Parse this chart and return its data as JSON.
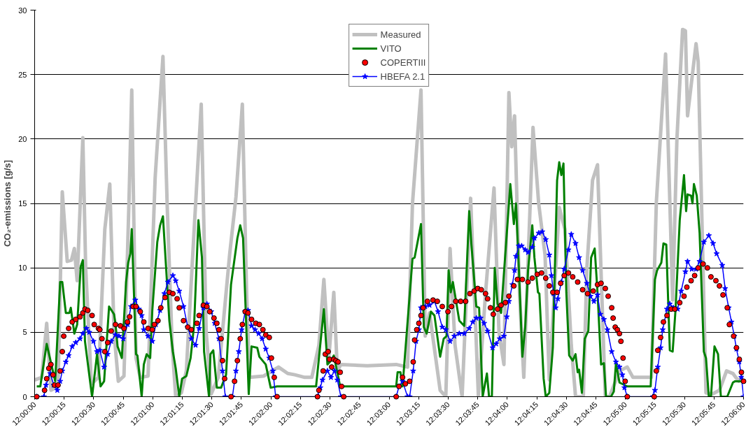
{
  "chart_data": {
    "type": "line",
    "ylabel": "CO₂-emissions [g/s]",
    "xlim": [
      12,
      12.1
    ],
    "ylim": [
      0,
      30
    ],
    "xticks": [
      {
        "value": 12,
        "label": "12:00:00"
      },
      {
        "value": 12.004167,
        "label": "12:00:15"
      },
      {
        "value": 12.008333,
        "label": "12:00:30"
      },
      {
        "value": 12.0125,
        "label": "12:00:45"
      },
      {
        "value": 12.016667,
        "label": "12:01:00"
      },
      {
        "value": 12.020833,
        "label": "12:01:15"
      },
      {
        "value": 12.025,
        "label": "12:01:30"
      },
      {
        "value": 12.029167,
        "label": "12:01:45"
      },
      {
        "value": 12.033333,
        "label": "12:02:00"
      },
      {
        "value": 12.0375,
        "label": "12:02:15"
      },
      {
        "value": 12.041667,
        "label": "12:02:30"
      },
      {
        "value": 12.045833,
        "label": "12:02:45"
      },
      {
        "value": 12.05,
        "label": "12:03:00"
      },
      {
        "value": 12.054167,
        "label": "12:03:15"
      },
      {
        "value": 12.058333,
        "label": "12:03:30"
      },
      {
        "value": 12.0625,
        "label": "12:03:45"
      },
      {
        "value": 12.066667,
        "label": "12:04:00"
      },
      {
        "value": 12.070833,
        "label": "12:04:15"
      },
      {
        "value": 12.075,
        "label": "12:04:30"
      },
      {
        "value": 12.079167,
        "label": "12:04:45"
      },
      {
        "value": 12.083333,
        "label": "12:05:00"
      },
      {
        "value": 12.0875,
        "label": "12:05:15"
      },
      {
        "value": 12.091667,
        "label": "12:05:30"
      },
      {
        "value": 12.095833,
        "label": "12:05:45"
      },
      {
        "value": 12.1,
        "label": "12:06:00"
      }
    ],
    "yticks": [
      0,
      5,
      10,
      15,
      20,
      25,
      30
    ],
    "grid": "y",
    "legend": "top",
    "series": [
      {
        "name": "Measured",
        "color": "#c0c0c0",
        "marker": "none",
        "x": [
          12.0,
          12.001,
          12.0017,
          12.0023,
          12.0033,
          12.0039,
          12.0046,
          12.0052,
          12.0056,
          12.006,
          12.0068,
          12.0072,
          12.008,
          12.009,
          12.0099,
          12.0106,
          12.0112,
          12.0118,
          12.0126,
          12.0133,
          12.0137,
          12.0143,
          12.0149,
          12.016,
          12.017,
          12.0181,
          12.0187,
          12.0194,
          12.0199,
          12.0207,
          12.0214,
          12.0222,
          12.0235,
          12.0242,
          12.0249,
          12.0259,
          12.0275,
          12.0284,
          12.0293,
          12.0299,
          12.0303,
          12.0323,
          12.0344,
          12.0357,
          12.0367,
          12.0381,
          12.0391,
          12.0401,
          12.0408,
          12.0415,
          12.0422,
          12.0427,
          12.0432,
          12.0469,
          12.051,
          12.0526,
          12.0533,
          12.0545,
          12.0551,
          12.0557,
          12.0572,
          12.058,
          12.0586,
          12.0593,
          12.0603,
          12.0615,
          12.0626,
          12.0636,
          12.0648,
          12.0655,
          12.0662,
          12.0669,
          12.0673,
          12.0677,
          12.0684,
          12.069,
          12.0703,
          12.0711,
          12.072,
          12.0726,
          12.074,
          12.0748,
          12.0757,
          12.0763,
          12.0774,
          12.0779,
          12.0787,
          12.0794,
          12.08,
          12.0805,
          12.0811,
          12.0825,
          12.0836,
          12.0844,
          12.087,
          12.0877,
          12.089,
          12.09,
          12.0906,
          12.0914,
          12.0918,
          12.0921,
          12.0933,
          12.0936,
          12.0942,
          12.0947,
          12.0956,
          12.0966,
          12.0976,
          12.0985,
          12.0993,
          12.1
        ],
        "values": [
          1.3,
          1.5,
          5.7,
          0.5,
          0.8,
          15.9,
          10.5,
          10.6,
          11.5,
          9.0,
          20.1,
          10,
          1.0,
          1.5,
          13,
          16.5,
          5,
          1.2,
          1.6,
          15,
          23.8,
          3,
          1.5,
          1.6,
          17,
          26.4,
          14.8,
          4,
          0,
          0.3,
          2,
          10,
          22.7,
          5,
          0.2,
          1.5,
          11,
          15.5,
          22.7,
          8,
          1.5,
          1.6,
          2.3,
          1.8,
          1.7,
          1.5,
          1.5,
          4,
          9.1,
          3,
          8.1,
          2.0,
          2.5,
          2.4,
          2.5,
          2.3,
          15,
          23.8,
          4.7,
          6.5,
          0.5,
          0,
          11.5,
          4,
          0,
          15.4,
          0,
          8,
          16.2,
          5,
          2.5,
          23.6,
          19.4,
          21.8,
          8,
          1.5,
          20.9,
          15,
          11,
          1.3,
          14.7,
          13,
          4,
          0,
          0,
          10,
          16.8,
          18.0,
          8,
          0,
          0,
          2,
          2.3,
          1.5,
          1.5,
          15.1,
          26.6,
          7.5,
          20,
          28.5,
          28.4,
          21.8,
          27.4,
          26,
          12,
          0.3,
          0.2,
          0.5,
          2.0,
          1.8,
          1.2,
          1.8
        ]
      },
      {
        "name": "VITO",
        "color": "#008000",
        "marker": "none",
        "x": [
          12.0003,
          12.0008,
          12.0017,
          12.0029,
          12.0036,
          12.0039,
          12.0044,
          12.0049,
          12.0051,
          12.0056,
          12.006,
          12.0065,
          12.0068,
          12.0071,
          12.0081,
          12.0088,
          12.0093,
          12.0098,
          12.0105,
          12.0112,
          12.0114,
          12.0117,
          12.0123,
          12.0129,
          12.0132,
          12.0135,
          12.0137,
          12.0143,
          12.0145,
          12.0151,
          12.0154,
          12.0158,
          12.0163,
          12.0166,
          12.0173,
          12.0177,
          12.0181,
          12.019,
          12.0195,
          12.0199,
          12.0204,
          12.0208,
          12.0214,
          12.022,
          12.0225,
          12.0231,
          12.0236,
          12.0239,
          12.0246,
          12.0248,
          12.0252,
          12.0257,
          12.0263,
          12.027,
          12.0277,
          12.0286,
          12.029,
          12.0294,
          12.0302,
          12.0306,
          12.0314,
          12.0317,
          12.0326,
          12.0333,
          12.0342,
          12.0397,
          12.0408,
          12.0413,
          12.0418,
          12.0422,
          12.0431,
          12.051,
          12.0512,
          12.0516,
          12.0519,
          12.0533,
          12.0536,
          12.0545,
          12.0549,
          12.0553,
          12.0559,
          12.0564,
          12.0572,
          12.0577,
          12.0581,
          12.0584,
          12.0587,
          12.059,
          12.0599,
          12.0606,
          12.0613,
          12.0616,
          12.0623,
          12.0627,
          12.0632,
          12.0638,
          12.0641,
          12.0645,
          12.0649,
          12.0653,
          12.0658,
          12.0671,
          12.0676,
          12.0679,
          12.0683,
          12.0688,
          12.0692,
          12.0696,
          12.0702,
          12.0705,
          12.071,
          12.0712,
          12.0718,
          12.0721,
          12.0726,
          12.0731,
          12.0737,
          12.074,
          12.0743,
          12.0746,
          12.075,
          12.0754,
          12.0759,
          12.0763,
          12.0766,
          12.0768,
          12.0772,
          12.0776,
          12.0781,
          12.0785,
          12.079,
          12.0794,
          12.0799,
          12.0803,
          12.0806,
          12.0813,
          12.0817,
          12.082,
          12.0825,
          12.0836,
          12.0869,
          12.0875,
          12.0878,
          12.0884,
          12.0887,
          12.0891,
          12.0896,
          12.09,
          12.0904,
          12.091,
          12.0916,
          12.0919,
          12.0921,
          12.0926,
          12.0928,
          12.093,
          12.0934,
          12.0938,
          12.0944,
          12.0947,
          12.0951,
          12.0954,
          12.0959,
          12.0964,
          12.0968,
          12.0977,
          12.0985,
          12.0988,
          12.1
        ],
        "values": [
          0.8,
          0.8,
          4.1,
          1.2,
          8.9,
          8.9,
          6.5,
          6.5,
          6.9,
          4.9,
          5.6,
          10.1,
          10.6,
          4.3,
          0,
          3.3,
          0.8,
          1.2,
          7.0,
          6.4,
          5.7,
          3.9,
          3.0,
          8.9,
          10.4,
          11.1,
          13.0,
          3.3,
          3.2,
          0,
          2.5,
          3.3,
          3.0,
          6.7,
          12.0,
          13.3,
          14.0,
          5.9,
          3.5,
          2.2,
          0,
          1.4,
          1.6,
          3.0,
          5.6,
          13.7,
          10.8,
          3.5,
          0,
          3.3,
          3.6,
          0.7,
          0.7,
          1.7,
          8.7,
          12.3,
          13.3,
          12.3,
          0.2,
          3.9,
          3.8,
          3.1,
          2.5,
          0.7,
          0.8,
          0.8,
          6.8,
          2.5,
          2.8,
          3.2,
          0.8,
          0.8,
          1.9,
          1.9,
          0.8,
          10.7,
          10.8,
          13.4,
          5.4,
          4.9,
          6.6,
          6.3,
          3.1,
          4.5,
          4.7,
          9.8,
          8.1,
          8.9,
          5.9,
          5.5,
          14.4,
          11.9,
          7.0,
          6.9,
          0,
          1.8,
          0,
          0,
          10.0,
          7.2,
          6.5,
          16.5,
          13.4,
          15.0,
          10.0,
          3.1,
          5.4,
          9.8,
          13.3,
          10.8,
          8.1,
          8.0,
          1.4,
          0,
          0.3,
          3.8,
          16.8,
          18.2,
          17.2,
          18.1,
          8.1,
          3.2,
          2.8,
          3.3,
          1.9,
          2.1,
          0.3,
          4.5,
          5.1,
          10.8,
          11.5,
          8.1,
          2.5,
          2.6,
          0,
          0,
          0.4,
          2.6,
          1.1,
          0.8,
          0.8,
          9.1,
          9.8,
          10.4,
          11.9,
          11.8,
          3.6,
          3.5,
          6.7,
          13.7,
          17.2,
          14.4,
          15.7,
          15.6,
          15.0,
          16.5,
          15.6,
          12.7,
          3.5,
          3.0,
          0,
          0,
          3.9,
          3.3,
          0,
          0,
          1.1,
          1.2,
          1.2
        ]
      },
      {
        "name": "COPERTIII",
        "color": "#ff0000",
        "type": "scatter",
        "marker": "circle",
        "x": [
          12.0003,
          12.0014,
          12.0017,
          12.002,
          12.0023,
          12.0026,
          12.0028,
          12.0033,
          12.0036,
          12.0039,
          12.0041,
          12.0048,
          12.0053,
          12.0058,
          12.0064,
          12.0068,
          12.0071,
          12.0075,
          12.0081,
          12.0084,
          12.009,
          12.0092,
          12.0095,
          12.0099,
          12.0103,
          12.0108,
          12.0114,
          12.0121,
          12.0126,
          12.0131,
          12.0134,
          12.0139,
          12.0143,
          12.0149,
          12.0154,
          12.016,
          12.0166,
          12.0169,
          12.0174,
          12.0178,
          12.0184,
          12.019,
          12.0195,
          12.0201,
          12.0204,
          12.021,
          12.0216,
          12.0221,
          12.0229,
          12.0232,
          12.0238,
          12.0243,
          12.0247,
          12.0253,
          12.0257,
          12.026,
          12.0263,
          12.0265,
          12.0268,
          12.0277,
          12.0282,
          12.0286,
          12.029,
          12.0293,
          12.0297,
          12.0301,
          12.0306,
          12.0312,
          12.0317,
          12.0322,
          12.0326,
          12.0331,
          12.0334,
          12.0338,
          12.0342,
          12.0399,
          12.0401,
          12.0407,
          12.041,
          12.0414,
          12.0416,
          12.0419,
          12.0422,
          12.0425,
          12.0428,
          12.0431,
          12.0433,
          12.0436,
          12.051,
          12.0514,
          12.0519,
          12.0523,
          12.0529,
          12.0534,
          12.0536,
          12.0539,
          12.0542,
          12.0545,
          12.0548,
          12.0554,
          12.0562,
          12.0568,
          12.0575,
          12.0583,
          12.0588,
          12.0594,
          12.0601,
          12.0608,
          12.0614,
          12.062,
          12.0625,
          12.063,
          12.0636,
          12.0639,
          12.0643,
          12.0647,
          12.0653,
          12.0658,
          12.0664,
          12.0669,
          12.0676,
          12.0681,
          12.0688,
          12.0696,
          12.0702,
          12.0709,
          12.0715,
          12.0721,
          12.0726,
          12.0731,
          12.0737,
          12.0742,
          12.0747,
          12.0753,
          12.0759,
          12.0766,
          12.0773,
          12.078,
          12.0788,
          12.0794,
          12.0799,
          12.0805,
          12.0809,
          12.0814,
          12.0816,
          12.0819,
          12.0822,
          12.0825,
          12.0827,
          12.083,
          12.0833,
          12.0836,
          12.0874,
          12.0877,
          12.0879,
          12.0883,
          12.0887,
          12.0892,
          12.0898,
          12.0903,
          12.091,
          12.0916,
          12.092,
          12.0926,
          12.0931,
          12.0936,
          12.0943,
          12.0949,
          12.0954,
          12.0961,
          12.0966,
          12.0971,
          12.0977,
          12.098,
          12.0986,
          12.099,
          12.0994,
          12.0997,
          12.1
        ],
        "values": [
          0,
          0.5,
          1.4,
          2.2,
          2.5,
          1.7,
          0.9,
          0.9,
          2.0,
          3.5,
          4.7,
          5.3,
          5.8,
          6.0,
          6.2,
          6.5,
          6.8,
          6.7,
          6.3,
          5.6,
          5.3,
          5.2,
          4.5,
          3.5,
          4.2,
          5.1,
          5.6,
          5.5,
          5.3,
          5.8,
          6.2,
          7.0,
          7.0,
          6.6,
          5.8,
          5.3,
          5.2,
          5.6,
          5.9,
          6.9,
          7.7,
          8.1,
          8.0,
          7.6,
          6.9,
          5.9,
          5.4,
          5.2,
          5.7,
          6.3,
          7.1,
          7.0,
          6.6,
          6.1,
          5.7,
          5.2,
          4.5,
          2.8,
          1.4,
          0,
          1.2,
          2.8,
          4.5,
          5.6,
          6.6,
          6.5,
          6.0,
          5.7,
          5.6,
          5.2,
          4.8,
          4.6,
          3.0,
          1.5,
          0,
          0,
          0.5,
          2.0,
          3.3,
          3.5,
          2.9,
          2.3,
          2.9,
          2.8,
          2.7,
          1.9,
          0.8,
          0,
          0,
          0.8,
          1.5,
          1.0,
          1.2,
          2.7,
          4.4,
          5.2,
          5.7,
          6.3,
          6.9,
          7.4,
          7.5,
          7.4,
          7.0,
          6.6,
          7.0,
          7.4,
          7.4,
          7.4,
          8.0,
          8.2,
          8.4,
          8.3,
          8.0,
          7.6,
          6.9,
          6.4,
          6.8,
          7.1,
          7.3,
          7.8,
          8.6,
          9.1,
          9.1,
          8.9,
          9.2,
          9.5,
          9.6,
          9.2,
          8.6,
          8.1,
          8.1,
          8.8,
          9.4,
          9.6,
          9.3,
          8.9,
          8.3,
          8.0,
          8.2,
          8.7,
          8.8,
          8.4,
          7.8,
          6.9,
          6.1,
          5.4,
          5.2,
          4.9,
          4.3,
          3.0,
          1.2,
          0,
          0,
          2.0,
          3.6,
          4.6,
          5.8,
          6.3,
          6.8,
          6.8,
          7.3,
          7.8,
          8.5,
          9.0,
          9.4,
          10.0,
          10.3,
          10.0,
          9.3,
          9.0,
          8.6,
          7.9,
          6.9,
          5.6,
          4.7,
          3.8,
          2.9,
          1.9,
          1.2
        ]
      },
      {
        "name": "HBEFA 2.1",
        "color": "#0000ff",
        "marker": "star",
        "x": [
          12.0003,
          12.0013,
          12.0016,
          12.0022,
          12.0027,
          12.0032,
          12.0036,
          12.0039,
          12.0044,
          12.0048,
          12.0053,
          12.0058,
          12.0064,
          12.0068,
          12.0073,
          12.0077,
          12.0083,
          12.0088,
          12.0092,
          12.0098,
          12.0103,
          12.0108,
          12.0114,
          12.0119,
          12.0125,
          12.0131,
          12.0136,
          12.0142,
          12.0147,
          12.0151,
          12.0154,
          12.016,
          12.0166,
          12.0171,
          12.0177,
          12.0183,
          12.0188,
          12.0195,
          12.0199,
          12.0204,
          12.021,
          12.0216,
          12.0221,
          12.0227,
          12.0232,
          12.0238,
          12.0243,
          12.0249,
          12.0254,
          12.026,
          12.0265,
          12.0269,
          12.0279,
          12.0284,
          12.0288,
          12.0292,
          12.0297,
          12.0301,
          12.0306,
          12.0311,
          12.0316,
          12.0321,
          12.0326,
          12.0331,
          12.0336,
          12.034,
          12.0399,
          12.0403,
          12.0406,
          12.0413,
          12.0418,
          12.0423,
          12.0427,
          12.0432,
          12.051,
          12.0514,
          12.0519,
          12.0526,
          12.0529,
          12.0534,
          12.0538,
          12.0542,
          12.0545,
          12.0551,
          12.0557,
          12.0564,
          12.0569,
          12.0575,
          12.058,
          12.0586,
          12.0592,
          12.0599,
          12.0606,
          12.0613,
          12.0618,
          12.0623,
          12.0629,
          12.0634,
          12.0639,
          12.0646,
          12.0651,
          12.0656,
          12.0662,
          12.0666,
          12.0669,
          12.0674,
          12.0677,
          12.0679,
          12.0683,
          12.0687,
          12.0692,
          12.0696,
          12.0702,
          12.0705,
          12.0711,
          12.0716,
          12.0721,
          12.0726,
          12.0729,
          12.0732,
          12.0735,
          12.0738,
          12.0743,
          12.0747,
          12.0753,
          12.0757,
          12.0763,
          12.0768,
          12.0773,
          12.0779,
          12.0784,
          12.0789,
          12.0794,
          12.0798,
          12.0803,
          12.0808,
          12.0814,
          12.082,
          12.0825,
          12.0829,
          12.0832,
          12.0836,
          12.0872,
          12.0875,
          12.0879,
          12.0883,
          12.0886,
          12.0892,
          12.0896,
          12.0901,
          12.0907,
          12.0912,
          12.0918,
          12.0921,
          12.0927,
          12.0933,
          12.0938,
          12.0944,
          12.0951,
          12.0957,
          12.0962,
          12.097,
          12.0974,
          12.0979,
          12.0983,
          12.0987,
          12.099,
          12.0994,
          12.0997,
          12.1
        ],
        "values": [
          0,
          0,
          0.9,
          1.8,
          0.9,
          0.5,
          1.2,
          2.0,
          2.7,
          3.2,
          3.9,
          4.2,
          4.5,
          4.9,
          5.3,
          5.0,
          4.3,
          3.5,
          3.6,
          2.3,
          3.3,
          4.3,
          4.8,
          4.7,
          4.5,
          5.6,
          7.0,
          7.5,
          6.8,
          6.3,
          5.2,
          4.7,
          4.3,
          5.6,
          6.7,
          8.0,
          8.9,
          9.4,
          9.0,
          8.2,
          7.0,
          5.4,
          4.5,
          4.0,
          5.3,
          6.9,
          7.2,
          6.6,
          5.7,
          4.5,
          2.0,
          0,
          0,
          2.0,
          3.5,
          5.2,
          6.6,
          6.7,
          5.5,
          5.2,
          4.9,
          4.5,
          3.7,
          3.0,
          2.0,
          0,
          0,
          0.7,
          1.3,
          2.0,
          1.5,
          2.0,
          1.3,
          0,
          0,
          0.8,
          1.2,
          0,
          0,
          2.0,
          4.3,
          5.2,
          6.9,
          7.0,
          7.1,
          7.4,
          6.6,
          5.4,
          5.2,
          4.3,
          4.7,
          4.9,
          4.9,
          5.3,
          5.8,
          6.1,
          6.1,
          5.7,
          5.1,
          3.8,
          4.1,
          4.5,
          4.7,
          6.2,
          7.4,
          8.7,
          9.8,
          10.9,
          11.7,
          11.7,
          11.4,
          11.2,
          11.6,
          12.3,
          12.7,
          12.8,
          12.2,
          11.0,
          9.4,
          8.0,
          6.9,
          7.6,
          8.9,
          9.9,
          11.4,
          12.6,
          11.9,
          10.8,
          9.8,
          8.8,
          7.8,
          7.4,
          7.9,
          6.4,
          6.0,
          5.2,
          3.5,
          2.7,
          2.3,
          1.7,
          0.7,
          0,
          0,
          0.5,
          2.3,
          3.8,
          5.2,
          6.8,
          7.2,
          6.9,
          6.8,
          8.2,
          9.7,
          10.5,
          9.9,
          9.9,
          10.5,
          12.0,
          12.5,
          11.9,
          11.1,
          10.2,
          8.4,
          6.9,
          5.8,
          4.7,
          3.7,
          2.7,
          1.5,
          0
        ]
      }
    ]
  }
}
